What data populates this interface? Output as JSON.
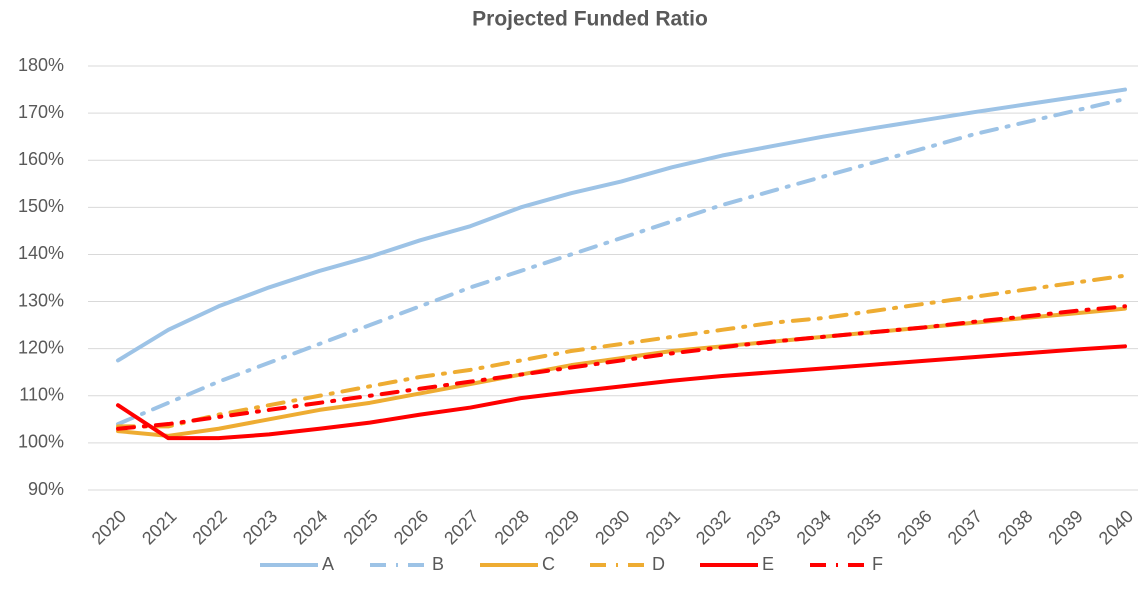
{
  "chart_data": {
    "type": "line",
    "title": "Projected Funded Ratio",
    "categories": [
      "2020",
      "2021",
      "2022",
      "2023",
      "2024",
      "2025",
      "2026",
      "2027",
      "2028",
      "2029",
      "2030",
      "2031",
      "2032",
      "2033",
      "2034",
      "2035",
      "2036",
      "2037",
      "2038",
      "2039",
      "2040"
    ],
    "series": [
      {
        "name": "A",
        "color": "#9dc3e6",
        "dash": "solid",
        "values": [
          117.5,
          124,
          129,
          133,
          136.5,
          139.5,
          143,
          146,
          150,
          153,
          155.5,
          158.5,
          161,
          163,
          165,
          166.8,
          168.5,
          170.2,
          171.8,
          173.4,
          175
        ]
      },
      {
        "name": "B",
        "color": "#9dc3e6",
        "dash": "dashdot",
        "values": [
          104,
          108.5,
          113,
          117,
          121,
          125,
          129,
          133,
          136.5,
          140,
          143.5,
          147,
          150.5,
          153.5,
          156.5,
          159.5,
          162.5,
          165.5,
          168,
          170.5,
          173
        ]
      },
      {
        "name": "C",
        "color": "#eeac32",
        "dash": "solid",
        "values": [
          102.5,
          101.5,
          103,
          105,
          107,
          108.5,
          110.5,
          112.5,
          114.5,
          116.5,
          118,
          119.5,
          120.5,
          121.5,
          122.5,
          123.5,
          124.5,
          125.5,
          126.5,
          127.5,
          128.5
        ]
      },
      {
        "name": "D",
        "color": "#eeac32",
        "dash": "dashdot",
        "values": [
          103.5,
          103.5,
          106,
          108,
          110,
          112,
          114,
          115.5,
          117.5,
          119.5,
          121,
          122.5,
          124,
          125.5,
          126.5,
          128,
          129.5,
          131,
          132.5,
          134,
          135.5
        ]
      },
      {
        "name": "E",
        "color": "#ff0000",
        "dash": "solid",
        "values": [
          108,
          101,
          101,
          101.8,
          103,
          104.3,
          106,
          107.5,
          109.5,
          110.8,
          112,
          113.2,
          114.2,
          115,
          115.8,
          116.6,
          117.4,
          118.2,
          119,
          119.8,
          120.5
        ]
      },
      {
        "name": "F",
        "color": "#ff0000",
        "dash": "dashdot",
        "values": [
          103,
          104,
          105.5,
          107,
          108.5,
          110,
          111.5,
          113,
          114.5,
          116,
          117.5,
          119,
          120.3,
          121.5,
          122.5,
          123.5,
          124.5,
          125.7,
          126.8,
          128,
          129
        ]
      }
    ],
    "ylim": [
      90,
      180
    ],
    "yticks": [
      {
        "value": 90,
        "label": "90%"
      },
      {
        "value": 100,
        "label": "100%"
      },
      {
        "value": 110,
        "label": "110%"
      },
      {
        "value": 120,
        "label": "120%"
      },
      {
        "value": 130,
        "label": "130%"
      },
      {
        "value": 140,
        "label": "140%"
      },
      {
        "value": 150,
        "label": "150%"
      },
      {
        "value": 160,
        "label": "160%"
      },
      {
        "value": 170,
        "label": "170%"
      },
      {
        "value": 180,
        "label": "180%"
      }
    ],
    "grid": true,
    "legend": "bottom"
  }
}
